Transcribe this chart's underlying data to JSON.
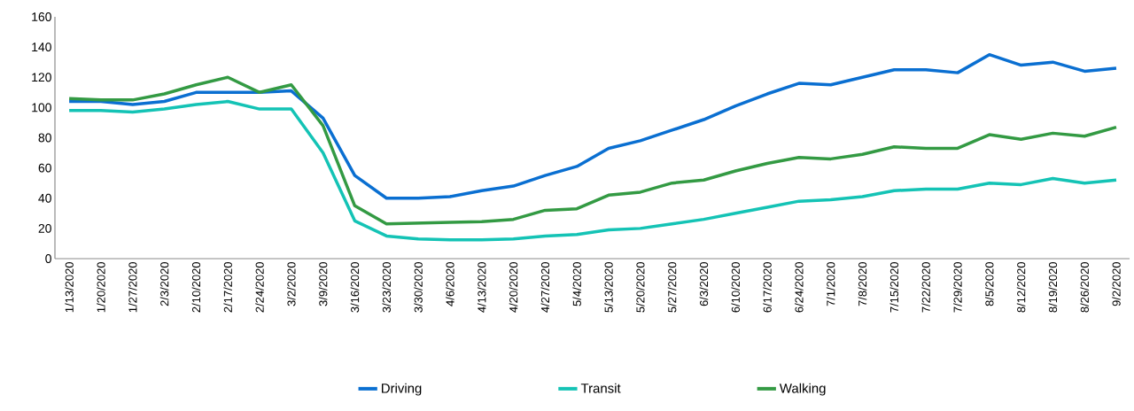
{
  "chart_data": {
    "type": "line",
    "categories": [
      "1/13/2020",
      "1/20/2020",
      "1/27/2020",
      "2/3/2020",
      "2/10/2020",
      "2/17/2020",
      "2/24/2020",
      "3/2/2020",
      "3/9/2020",
      "3/16/2020",
      "3/23/2020",
      "3/30/2020",
      "4/6/2020",
      "4/13/2020",
      "4/20/2020",
      "4/27/2020",
      "5/4/2020",
      "5/13/2020",
      "5/20/2020",
      "5/27/2020",
      "6/3/2020",
      "6/10/2020",
      "6/17/2020",
      "6/24/2020",
      "7/1/2020",
      "7/8/2020",
      "7/15/2020",
      "7/22/2020",
      "7/29/2020",
      "8/5/2020",
      "8/12/2020",
      "8/19/2020",
      "8/26/2020",
      "9/2/2020"
    ],
    "series": [
      {
        "name": "Driving",
        "color": "#0a6fd1",
        "values": [
          104,
          104,
          102,
          104,
          110,
          110,
          110,
          111,
          93,
          55,
          40,
          40,
          41,
          45,
          48,
          55,
          61,
          73,
          78,
          85,
          92,
          101,
          109,
          116,
          115,
          120,
          125,
          125,
          123,
          135,
          128,
          130,
          124,
          126
        ]
      },
      {
        "name": "Transit",
        "color": "#14c3b5",
        "values": [
          98,
          98,
          97,
          99,
          102,
          104,
          99,
          99,
          70,
          25,
          15,
          13,
          12.5,
          12.5,
          13,
          15,
          16,
          19,
          20,
          23,
          26,
          30,
          34,
          38,
          39,
          41,
          45,
          46,
          46,
          50,
          49,
          53,
          50,
          52
        ]
      },
      {
        "name": "Walking",
        "color": "#339a43",
        "values": [
          106,
          105,
          105,
          109,
          115,
          120,
          110,
          115,
          88,
          35,
          23,
          23.5,
          24,
          24.5,
          26,
          32,
          33,
          42,
          44,
          50,
          52,
          58,
          63,
          67,
          66,
          69,
          74,
          73,
          73,
          82,
          79,
          83,
          81,
          87
        ]
      }
    ],
    "ylim": [
      0,
      160
    ],
    "yticks": [
      0,
      20,
      40,
      60,
      80,
      100,
      120,
      140,
      160
    ],
    "grid": false,
    "legend": "bottom",
    "marker": "none",
    "line_style": "solid"
  }
}
